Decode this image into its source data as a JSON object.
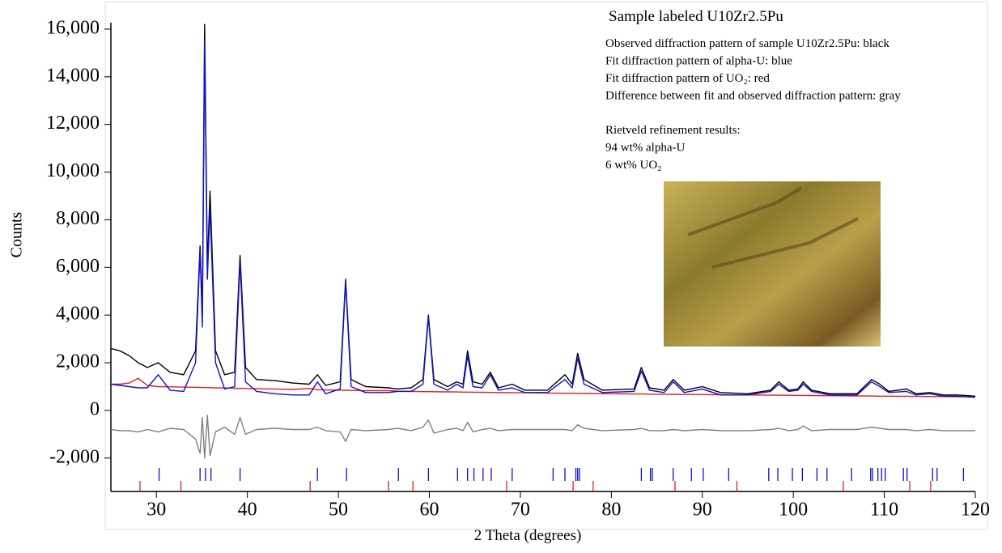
{
  "chart_data": {
    "type": "line",
    "title": "Sample labeled U10Zr2.5Pu",
    "annotations": [
      "Observed diffraction pattern of sample U10Zr2.5Pu: black",
      "Fit diffraction pattern of alpha-U: blue",
      "Fit diffraction pattern of UO₂: red",
      "Difference between fit and observed diffraction pattern: gray",
      "Rietveld refinement results:",
      "94 wt% alpha-U",
      "6 wt% UO₂"
    ],
    "x_label": "2 Theta (degrees)",
    "y_label": "Counts",
    "xlim": [
      25,
      120
    ],
    "ylim": [
      -3400,
      16270
    ],
    "xticks": [
      30,
      40,
      50,
      60,
      70,
      80,
      90,
      100,
      110,
      120
    ],
    "yticks": [
      {
        "value": -2000,
        "label": "-2,000"
      },
      0,
      {
        "value": 2000,
        "label": "2,000"
      },
      {
        "value": 4000,
        "label": "4,000"
      },
      {
        "value": 6000,
        "label": "6,000"
      },
      {
        "value": 8000,
        "label": "8,000"
      },
      {
        "value": 10000,
        "label": "10,000"
      },
      {
        "value": 12000,
        "label": "12,000"
      },
      {
        "value": 14000,
        "label": "14,000"
      },
      {
        "value": 16000,
        "label": "16,000"
      }
    ],
    "x": [
      25,
      26,
      27,
      28,
      29,
      30.2,
      31.5,
      33,
      34.3,
      34.8,
      35.05,
      35.3,
      35.6,
      35.9,
      36.5,
      37.5,
      38.6,
      39.2,
      39.8,
      41,
      43,
      45,
      46.8,
      47.7,
      48.6,
      50.2,
      50.8,
      51.4,
      53,
      55.5,
      56.5,
      58,
      59.3,
      59.9,
      60.5,
      62,
      63,
      63.7,
      64.2,
      64.8,
      65.8,
      66.7,
      67.6,
      69.1,
      70.5,
      73,
      74.9,
      75.7,
      76.3,
      77,
      79,
      82.5,
      83.3,
      84.2,
      85.8,
      86.8,
      88,
      90,
      92,
      95,
      97.5,
      98.4,
      99.5,
      100.5,
      101.1,
      102,
      104,
      107,
      108.6,
      109.5,
      110.5,
      112.4,
      113.5,
      115,
      116.5,
      118,
      120
    ],
    "series": [
      {
        "color": "#e02020",
        "values": [
          1100,
          1100,
          1150,
          1350,
          1050,
          1000,
          990,
          980,
          970,
          965,
          960,
          960,
          960,
          955,
          950,
          940,
          930,
          925,
          920,
          910,
          900,
          880,
          920,
          870,
          860,
          850,
          845,
          840,
          830,
          830,
          810,
          800,
          790,
          790,
          785,
          780,
          775,
          770,
          770,
          765,
          760,
          755,
          750,
          745,
          740,
          730,
          720,
          720,
          715,
          710,
          705,
          690,
          690,
          685,
          680,
          675,
          670,
          665,
          660,
          650,
          640,
          640,
          635,
          630,
          630,
          625,
          620,
          610,
          605,
          600,
          600,
          595,
          590,
          585,
          580,
          575,
          570
        ]
      },
      {
        "color": "#808080",
        "values": [
          -800,
          -850,
          -850,
          -900,
          -800,
          -900,
          -750,
          -800,
          -1200,
          -1800,
          -300,
          -2000,
          -200,
          -1900,
          -900,
          -700,
          -1000,
          -300,
          -1000,
          -800,
          -750,
          -800,
          -800,
          -700,
          -850,
          -900,
          -1300,
          -800,
          -850,
          -800,
          -750,
          -850,
          -700,
          -400,
          -950,
          -800,
          -750,
          -850,
          -500,
          -900,
          -800,
          -750,
          -850,
          -800,
          -800,
          -800,
          -800,
          -850,
          -600,
          -750,
          -850,
          -800,
          -750,
          -850,
          -850,
          -800,
          -850,
          -800,
          -850,
          -850,
          -800,
          -750,
          -850,
          -800,
          -650,
          -850,
          -800,
          -800,
          -700,
          -750,
          -800,
          -800,
          -850,
          -800,
          -850,
          -850,
          -850
        ]
      },
      {
        "color": "#000000",
        "values": [
          2600,
          2500,
          2300,
          2000,
          1800,
          2000,
          1600,
          1500,
          2500,
          6900,
          4000,
          16200,
          6000,
          9200,
          2500,
          1500,
          1600,
          6500,
          1800,
          1300,
          1250,
          1150,
          1100,
          1500,
          1050,
          1200,
          5500,
          1300,
          1000,
          950,
          900,
          950,
          1300,
          4000,
          1300,
          1000,
          1200,
          1100,
          2500,
          1200,
          1100,
          1600,
          950,
          1100,
          850,
          850,
          1500,
          1100,
          2400,
          1300,
          850,
          900,
          1800,
          950,
          850,
          1300,
          850,
          1000,
          750,
          700,
          850,
          1200,
          850,
          900,
          1200,
          850,
          700,
          700,
          1300,
          1100,
          800,
          900,
          700,
          750,
          650,
          650,
          600
        ]
      },
      {
        "color": "#1010d0",
        "values": [
          1100,
          1050,
          1000,
          950,
          950,
          1500,
          850,
          800,
          2000,
          6700,
          3500,
          15500,
          5500,
          8500,
          2000,
          900,
          1000,
          6200,
          1200,
          800,
          700,
          650,
          650,
          1200,
          700,
          900,
          5400,
          1000,
          750,
          750,
          800,
          800,
          1100,
          3900,
          1100,
          850,
          1100,
          950,
          2300,
          1000,
          950,
          1500,
          850,
          950,
          750,
          750,
          1300,
          950,
          2200,
          1100,
          750,
          800,
          1650,
          850,
          750,
          1200,
          750,
          900,
          650,
          650,
          800,
          1100,
          800,
          850,
          1100,
          800,
          650,
          650,
          1200,
          1000,
          750,
          800,
          650,
          700,
          600,
          600,
          550
        ]
      }
    ],
    "reflections": [
      {
        "color": "#1010d0",
        "x": [
          30.3,
          34.8,
          35.4,
          36.0,
          39.2,
          47.7,
          50.9,
          56.6,
          59.9,
          63.1,
          64.2,
          64.9,
          65.9,
          66.8,
          69.1,
          73.6,
          74.9,
          76.1,
          76.3,
          76.5,
          83.3,
          84.3,
          84.5,
          86.8,
          88.8,
          90.1,
          92.9,
          97.3,
          98.3,
          99.9,
          101.0,
          102.6,
          103.7,
          106.4,
          108.5,
          108.7,
          109.3,
          109.7,
          110.1,
          112.1,
          112.5,
          115.3,
          115.8,
          118.7
        ]
      },
      {
        "color": "#e02020",
        "x": [
          28.2,
          32.7,
          46.9,
          55.5,
          58.2,
          68.5,
          75.8,
          78.0,
          87.0,
          93.8,
          105.5,
          112.8,
          115.1
        ]
      }
    ]
  }
}
